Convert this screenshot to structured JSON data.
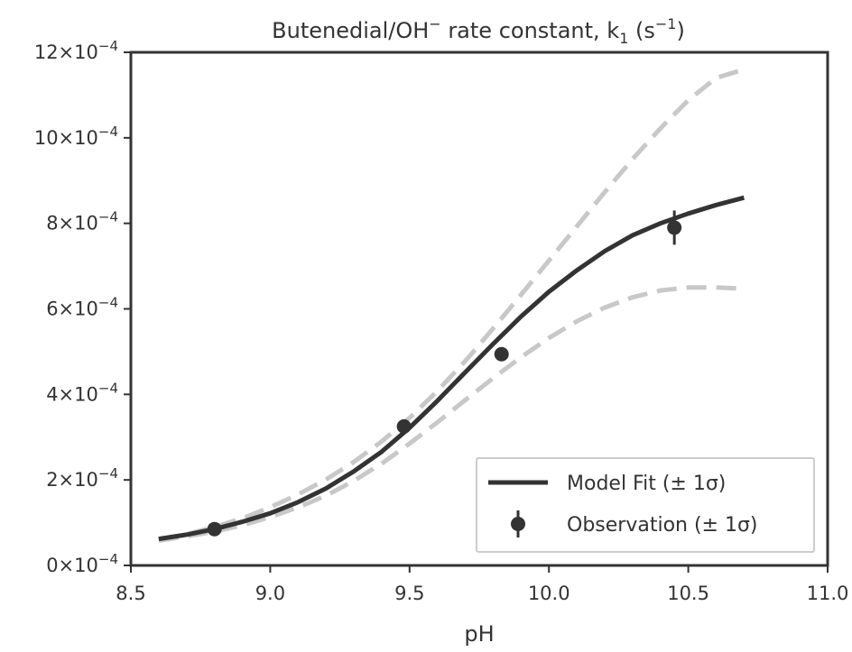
{
  "chart_data": {
    "type": "line",
    "title_parts": {
      "main": "Butenedial/OH",
      "main_sup": "−",
      "rest": " rate constant, k",
      "sub": "1",
      "unit_open": " (s",
      "unit_sup": "−1",
      "unit_close": ")"
    },
    "xlabel": "pH",
    "ylabel": "",
    "xlim": [
      8.5,
      11.0
    ],
    "ylim": [
      0,
      0.0012
    ],
    "x_ticks": [
      8.5,
      9.0,
      9.5,
      10.0,
      10.5,
      11.0
    ],
    "x_tick_labels": [
      "8.5",
      "9.0",
      "9.5",
      "10.0",
      "10.5",
      "11.0"
    ],
    "y_ticks": [
      0,
      0.0002,
      0.0004,
      0.0006,
      0.0008,
      0.001,
      0.0012
    ],
    "y_tick_mantissas": [
      "0",
      "2",
      "4",
      "6",
      "8",
      "10",
      "12"
    ],
    "y_tick_base": "×10",
    "y_tick_exponent": "−4",
    "grid": false,
    "legend_position": "bottom-right",
    "colors": {
      "fit": "#333333",
      "bounds": "#c8c8c8",
      "observation": "#333333",
      "axes": "#333333"
    },
    "series": [
      {
        "name": "Model Fit (± 1σ)",
        "kind": "line",
        "x": [
          8.6,
          8.7,
          8.8,
          8.9,
          9.0,
          9.1,
          9.2,
          9.3,
          9.4,
          9.5,
          9.6,
          9.7,
          9.8,
          9.9,
          10.0,
          10.1,
          10.2,
          10.3,
          10.4,
          10.5,
          10.6,
          10.7
        ],
        "y": [
          6.2e-05,
          7.2e-05,
          8.5e-05,
          0.000102,
          0.000122,
          0.000148,
          0.00018,
          0.00022,
          0.000266,
          0.000322,
          0.000385,
          0.000452,
          0.000518,
          0.000582,
          0.00064,
          0.00069,
          0.000735,
          0.000772,
          0.0008,
          0.000823,
          0.000843,
          0.00086
        ]
      },
      {
        "kind": "upper-bound",
        "x": [
          8.6,
          8.7,
          8.8,
          8.9,
          9.0,
          9.1,
          9.2,
          9.3,
          9.4,
          9.5,
          9.6,
          9.7,
          9.8,
          9.9,
          10.0,
          10.1,
          10.2,
          10.3,
          10.4,
          10.5,
          10.6,
          10.7
        ],
        "y": [
          6e-05,
          7.3e-05,
          9e-05,
          0.00011,
          0.000136,
          0.000166,
          0.000201,
          0.000242,
          0.00029,
          0.000345,
          0.000408,
          0.000478,
          0.000554,
          0.000633,
          0.000713,
          0.000793,
          0.000873,
          0.00095,
          0.001022,
          0.001088,
          0.00114,
          0.00116
        ]
      },
      {
        "kind": "lower-bound",
        "x": [
          8.6,
          8.7,
          8.8,
          8.9,
          9.0,
          9.1,
          9.2,
          9.3,
          9.4,
          9.5,
          9.6,
          9.7,
          9.8,
          9.9,
          10.0,
          10.1,
          10.2,
          10.3,
          10.4,
          10.5,
          10.6,
          10.7
        ],
        "y": [
          5.8e-05,
          6.8e-05,
          7.9e-05,
          9.4e-05,
          0.000113,
          0.000136,
          0.000163,
          0.000198,
          0.000238,
          0.000285,
          0.000335,
          0.000387,
          0.000438,
          0.000487,
          0.000532,
          0.000571,
          0.000603,
          0.000627,
          0.000643,
          0.00065,
          0.00065,
          0.000647
        ]
      },
      {
        "name": "Observation (± 1σ)",
        "kind": "errorbar",
        "x": [
          8.8,
          9.48,
          9.83,
          10.45
        ],
        "y": [
          8.5e-05,
          0.000325,
          0.000494,
          0.00079
        ],
        "yerr": [
          1e-05,
          1.2e-05,
          1.6e-05,
          4e-05
        ]
      }
    ]
  }
}
